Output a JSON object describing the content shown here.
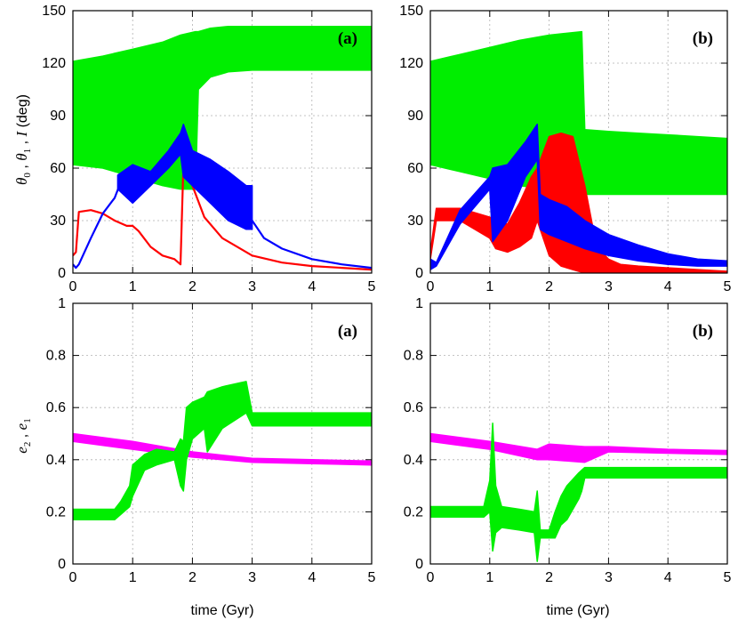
{
  "figure": {
    "top_ylabel": {
      "parts": [
        "θ",
        "0",
        " , ",
        "θ",
        "1",
        " , ",
        "I",
        " (deg)"
      ]
    },
    "bottom_ylabel": {
      "parts": [
        "e",
        "2",
        " , ",
        "e",
        "1"
      ]
    },
    "xlabel": "time (Gyr)"
  },
  "chart_data": [
    {
      "type": "line",
      "panel": "top-left",
      "tag": "(a)",
      "xlabel": "time (Gyr)",
      "ylabel": "θ0 , θ1 , I (deg)",
      "xlim": [
        0,
        5
      ],
      "ylim": [
        0,
        150
      ],
      "xticks": [
        "0",
        "1",
        "2",
        "3",
        "4",
        "5"
      ],
      "yticks": [
        "0",
        "30",
        "60",
        "90",
        "120",
        "150"
      ],
      "grid": true,
      "series": [
        {
          "color": "#00ee00",
          "band": true,
          "x": [
            0,
            0.5,
            1.0,
            1.5,
            1.8,
            2.05,
            2.1,
            2.3,
            2.6,
            3.0,
            3.5,
            4.0,
            4.5,
            5.0
          ],
          "ymin": [
            62,
            60,
            55,
            50,
            48,
            48,
            105,
            112,
            115,
            116,
            116,
            116,
            116,
            116
          ],
          "ymax": [
            121,
            124,
            128,
            132,
            136,
            138,
            138,
            140,
            141,
            141,
            141,
            141,
            141,
            141
          ]
        },
        {
          "color": "#ff0000",
          "band": false,
          "x": [
            0,
            0.05,
            0.1,
            0.3,
            0.5,
            0.7,
            0.9,
            1.0,
            1.1,
            1.3,
            1.5,
            1.7,
            1.8,
            1.85,
            1.9,
            1.95,
            2.0,
            2.2,
            2.5,
            3.0,
            3.5,
            4.0,
            4.5,
            5.0
          ],
          "y": [
            10,
            12,
            35,
            36,
            34,
            30,
            27,
            27,
            24,
            15,
            10,
            8,
            5,
            62,
            55,
            60,
            50,
            32,
            20,
            10,
            6,
            4,
            3,
            2
          ]
        },
        {
          "color": "#0000ff",
          "band": false,
          "x": [
            0,
            0.05,
            0.1,
            0.3,
            0.5,
            0.7,
            0.8,
            1.0,
            1.2,
            1.4,
            1.6,
            1.8,
            1.9,
            2.0,
            2.2,
            2.5,
            2.8,
            3.0,
            3.2,
            3.5,
            4.0,
            4.5,
            5.0
          ],
          "y": [
            5,
            3,
            5,
            20,
            34,
            43,
            52,
            55,
            56,
            60,
            68,
            76,
            70,
            60,
            52,
            45,
            38,
            30,
            20,
            14,
            8,
            5,
            3
          ]
        },
        {
          "color": "#0000ff",
          "band": true,
          "x": [
            0.75,
            1.0,
            1.3,
            1.6,
            1.8,
            1.85,
            2.0,
            2.3,
            2.6,
            2.9,
            3.0
          ],
          "ymin": [
            48,
            40,
            50,
            60,
            68,
            55,
            50,
            40,
            30,
            25,
            25
          ],
          "ymax": [
            56,
            62,
            58,
            70,
            80,
            85,
            70,
            65,
            58,
            50,
            50
          ]
        }
      ]
    },
    {
      "type": "line",
      "panel": "top-right",
      "tag": "(b)",
      "xlabel": "time (Gyr)",
      "xlim": [
        0,
        5
      ],
      "ylim": [
        0,
        150
      ],
      "xticks": [
        "0",
        "1",
        "2",
        "3",
        "4",
        "5"
      ],
      "yticks": [
        "0",
        "30",
        "60",
        "90",
        "120",
        "150"
      ],
      "grid": true,
      "series": [
        {
          "color": "#00ee00",
          "band": true,
          "x": [
            0,
            0.5,
            1.0,
            1.5,
            2.0,
            2.55,
            2.6,
            3.0,
            3.5,
            4.0,
            4.5,
            5.0
          ],
          "ymin": [
            62,
            58,
            54,
            50,
            48,
            46,
            45,
            45,
            45,
            45,
            45,
            45
          ],
          "ymax": [
            121,
            125,
            129,
            133,
            136,
            138,
            82,
            81,
            80,
            79,
            78,
            77
          ]
        },
        {
          "color": "#ff0000",
          "band": true,
          "x": [
            0,
            0.1,
            0.5,
            1.0,
            1.1,
            1.3,
            1.5,
            1.7,
            1.8,
            2.0,
            2.2,
            2.4,
            2.6,
            2.8,
            3.0,
            3.2,
            3.5,
            4.0,
            4.5,
            5.0
          ],
          "ymin": [
            8,
            30,
            30,
            20,
            14,
            12,
            15,
            20,
            30,
            10,
            4,
            2,
            0,
            0,
            0,
            0,
            0,
            0,
            0,
            0
          ],
          "ymax": [
            12,
            37,
            37,
            32,
            30,
            28,
            40,
            55,
            60,
            78,
            80,
            78,
            50,
            15,
            8,
            5,
            4,
            3,
            2,
            1
          ]
        },
        {
          "color": "#0000ff",
          "band": true,
          "x": [
            0,
            0.1,
            0.5,
            1.0,
            1.05,
            1.3,
            1.6,
            1.8,
            1.85,
            2.0,
            2.3,
            2.6,
            3.0,
            3.5,
            4.0,
            4.5,
            5.0
          ],
          "ymin": [
            2,
            4,
            28,
            48,
            18,
            30,
            55,
            65,
            25,
            22,
            18,
            14,
            10,
            7,
            5,
            4,
            4
          ],
          "ymax": [
            8,
            6,
            36,
            55,
            60,
            62,
            75,
            85,
            45,
            42,
            38,
            30,
            22,
            16,
            11,
            8,
            7
          ]
        }
      ]
    },
    {
      "type": "line",
      "panel": "bottom-left",
      "tag": "(a)",
      "xlabel": "time (Gyr)",
      "ylabel": "e2 , e1",
      "xlim": [
        0,
        5
      ],
      "ylim": [
        0,
        1
      ],
      "xticks": [
        "0",
        "1",
        "2",
        "3",
        "4",
        "5"
      ],
      "yticks": [
        "0",
        "0.2",
        "0.4",
        "0.6",
        "0.8",
        "1"
      ],
      "grid": true,
      "series": [
        {
          "color": "#ff00ff",
          "band": true,
          "x": [
            0,
            1,
            2,
            3,
            4,
            5
          ],
          "ymin": [
            0.47,
            0.44,
            0.41,
            0.39,
            0.385,
            0.38
          ],
          "ymax": [
            0.5,
            0.47,
            0.43,
            0.405,
            0.4,
            0.395
          ]
        },
        {
          "color": "#00ee00",
          "band": true,
          "x": [
            0,
            0.7,
            0.8,
            0.95,
            1.0,
            1.2,
            1.4,
            1.7,
            1.8,
            1.85,
            1.9,
            2.0,
            2.2,
            2.25,
            2.5,
            2.9,
            3.0,
            3.5,
            4.0,
            4.5,
            5.0
          ],
          "ymin": [
            0.17,
            0.17,
            0.19,
            0.22,
            0.26,
            0.36,
            0.38,
            0.4,
            0.3,
            0.28,
            0.4,
            0.48,
            0.52,
            0.43,
            0.52,
            0.58,
            0.53,
            0.53,
            0.53,
            0.53,
            0.53
          ],
          "ymax": [
            0.21,
            0.21,
            0.24,
            0.3,
            0.38,
            0.42,
            0.44,
            0.43,
            0.48,
            0.47,
            0.6,
            0.62,
            0.64,
            0.66,
            0.68,
            0.7,
            0.58,
            0.58,
            0.58,
            0.58,
            0.58
          ]
        }
      ]
    },
    {
      "type": "line",
      "panel": "bottom-right",
      "tag": "(b)",
      "xlabel": "time (Gyr)",
      "xlim": [
        0,
        5
      ],
      "ylim": [
        0,
        1
      ],
      "xticks": [
        "0",
        "1",
        "2",
        "3",
        "4",
        "5"
      ],
      "yticks": [
        "0",
        "0.2",
        "0.4",
        "0.6",
        "0.8",
        "1"
      ],
      "grid": true,
      "series": [
        {
          "color": "#ff00ff",
          "band": true,
          "x": [
            0,
            1,
            1.8,
            2.0,
            2.6,
            3,
            4,
            5
          ],
          "ymin": [
            0.47,
            0.44,
            0.4,
            0.4,
            0.39,
            0.43,
            0.425,
            0.42
          ],
          "ymax": [
            0.5,
            0.47,
            0.44,
            0.46,
            0.45,
            0.45,
            0.44,
            0.435
          ]
        },
        {
          "color": "#00ee00",
          "band": true,
          "x": [
            0,
            0.9,
            1.0,
            1.05,
            1.1,
            1.2,
            1.5,
            1.75,
            1.8,
            1.85,
            2.0,
            2.1,
            2.2,
            2.3,
            2.5,
            2.55,
            2.6,
            3.0,
            4.0,
            5.0
          ],
          "ymin": [
            0.18,
            0.18,
            0.2,
            0.05,
            0.12,
            0.14,
            0.13,
            0.12,
            0.01,
            0.1,
            0.1,
            0.1,
            0.15,
            0.17,
            0.25,
            0.28,
            0.33,
            0.33,
            0.33,
            0.33
          ],
          "ymax": [
            0.22,
            0.22,
            0.32,
            0.54,
            0.3,
            0.22,
            0.21,
            0.2,
            0.28,
            0.13,
            0.13,
            0.2,
            0.26,
            0.3,
            0.35,
            0.36,
            0.37,
            0.37,
            0.37,
            0.37
          ]
        }
      ]
    }
  ]
}
